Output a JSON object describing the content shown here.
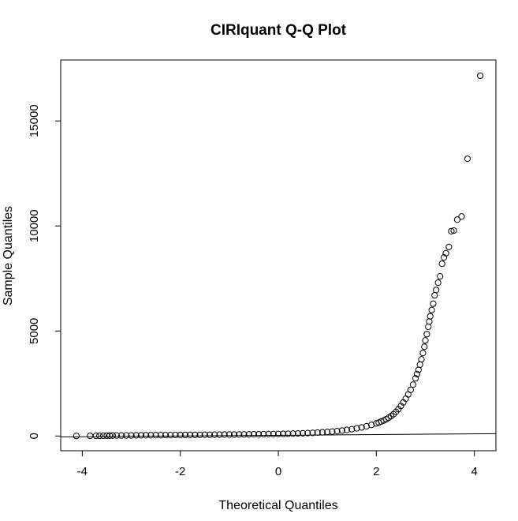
{
  "chart_data": {
    "type": "scatter",
    "title": "CIRIquant Q-Q Plot",
    "xlabel": "Theoretical Quantiles",
    "ylabel": "Sample Quantiles",
    "xlim": [
      -4.44,
      4.44
    ],
    "ylim": [
      -700,
      17900
    ],
    "x_ticks": [
      -4,
      -2,
      0,
      2,
      4
    ],
    "x_tick_labels": [
      "-4",
      "-2",
      "0",
      "2",
      "4"
    ],
    "y_ticks": [
      0,
      5000,
      10000,
      15000
    ],
    "y_tick_labels": [
      "0",
      "5000",
      "10000",
      "15000"
    ],
    "grid": false,
    "legend": "none",
    "marker": "open-circle",
    "reference_line": {
      "slope": 17.2,
      "intercept": 35
    },
    "points_x": [
      -4.12,
      -3.84,
      -3.72,
      -3.65,
      -3.57,
      -3.5,
      -3.44,
      -3.38,
      -3.3,
      -3.2,
      -3.1,
      -3.0,
      -2.9,
      -2.8,
      -2.7,
      -2.6,
      -2.5,
      -2.4,
      -2.3,
      -2.2,
      -2.1,
      -2.0,
      -1.9,
      -1.8,
      -1.7,
      -1.6,
      -1.5,
      -1.4,
      -1.3,
      -1.2,
      -1.1,
      -1.0,
      -0.9,
      -0.8,
      -0.7,
      -0.6,
      -0.5,
      -0.4,
      -0.3,
      -0.2,
      -0.1,
      0.0,
      0.1,
      0.2,
      0.3,
      0.4,
      0.5,
      0.6,
      0.7,
      0.8,
      0.9,
      1.0,
      1.1,
      1.2,
      1.3,
      1.4,
      1.5,
      1.6,
      1.7,
      1.8,
      1.9,
      2.0,
      2.05,
      2.1,
      2.15,
      2.2,
      2.25,
      2.3,
      2.35,
      2.4,
      2.45,
      2.5,
      2.55,
      2.6,
      2.65,
      2.7,
      2.75,
      2.8,
      2.83,
      2.86,
      2.89,
      2.92,
      2.95,
      2.98,
      3.0,
      3.03,
      3.06,
      3.08,
      3.1,
      3.13,
      3.16,
      3.19,
      3.22,
      3.26,
      3.3,
      3.34,
      3.38,
      3.42,
      3.48,
      3.53,
      3.58,
      3.65,
      3.74,
      3.86,
      4.12
    ],
    "points_y": [
      5,
      8,
      10,
      12,
      15,
      18,
      20,
      22,
      25,
      27,
      29,
      31,
      33,
      35,
      37,
      39,
      41,
      43,
      45,
      47,
      49,
      51,
      53,
      55,
      57,
      59,
      61,
      63,
      65,
      67,
      69,
      71,
      73,
      75,
      78,
      81,
      84,
      87,
      90,
      93,
      97,
      101,
      106,
      111,
      117,
      124,
      132,
      141,
      151,
      163,
      177,
      193,
      212,
      234,
      260,
      290,
      325,
      365,
      410,
      465,
      530,
      600,
      640,
      690,
      740,
      800,
      870,
      950,
      1040,
      1150,
      1280,
      1430,
      1600,
      1780,
      1980,
      2200,
      2450,
      2750,
      2950,
      3150,
      3400,
      3650,
      3950,
      4250,
      4550,
      4850,
      5200,
      5450,
      5700,
      6000,
      6300,
      6700,
      6950,
      7300,
      7600,
      8200,
      8500,
      8700,
      9000,
      9750,
      9780,
      10300,
      10450,
      13200,
      17150
    ]
  }
}
